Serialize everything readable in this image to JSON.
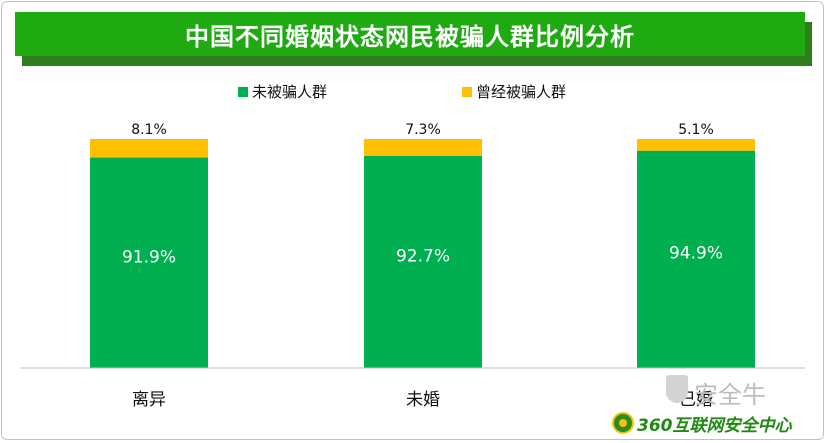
{
  "chart_data": {
    "type": "bar",
    "stacked": true,
    "title": "中国不同婚姻状态网民被骗人群比例分析",
    "categories": [
      "离异",
      "未婚",
      "已婚"
    ],
    "series": [
      {
        "name": "未被骗人群",
        "color": "#00b050",
        "values": [
          91.9,
          92.7,
          94.9
        ],
        "labels": [
          "91.9%",
          "92.7%",
          "94.9%"
        ]
      },
      {
        "name": "曾经被骗人群",
        "color": "#ffc000",
        "values": [
          8.1,
          7.3,
          5.1
        ],
        "labels": [
          "8.1%",
          "7.3%",
          "5.1%"
        ]
      }
    ],
    "ylim": [
      0,
      100
    ],
    "legend_position": "top",
    "grid": false
  },
  "watermark": {
    "text": "安全牛",
    "icon": "shield-icon"
  },
  "brand": {
    "text": "360互联网安全中心",
    "icon": "360-logo-icon"
  }
}
